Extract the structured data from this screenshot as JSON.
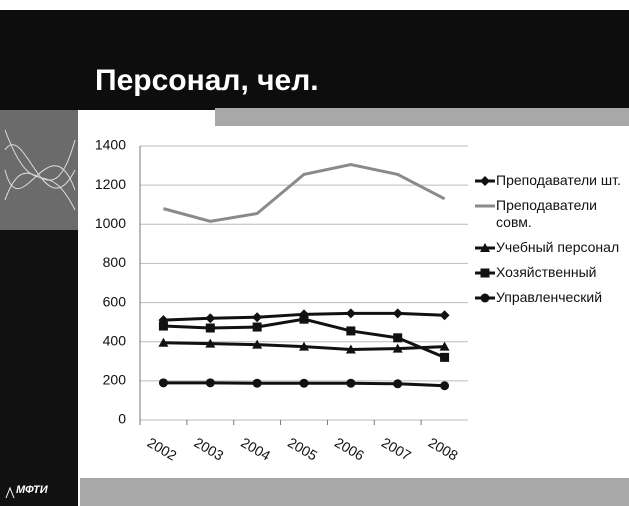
{
  "slide_title": "Персонал, чел.",
  "logo": "МФТИ",
  "chart_data": {
    "type": "line",
    "categories": [
      "2002",
      "2003",
      "2004",
      "2005",
      "2006",
      "2007",
      "2008"
    ],
    "series": [
      {
        "name": "Преподаватели шт.",
        "color": "#111111",
        "marker": "diamond",
        "values": [
          510,
          520,
          525,
          540,
          545,
          545,
          535
        ]
      },
      {
        "name": "Преподаватели совм.",
        "color": "#8a8a8a",
        "marker": "none",
        "values": [
          1080,
          1015,
          1055,
          1255,
          1305,
          1255,
          1130
        ]
      },
      {
        "name": "Учебный персонал",
        "color": "#111111",
        "marker": "triangle",
        "values": [
          395,
          390,
          385,
          375,
          360,
          365,
          375
        ]
      },
      {
        "name": "Хозяйственный",
        "color": "#111111",
        "marker": "square",
        "values": [
          480,
          470,
          475,
          515,
          455,
          420,
          320
        ]
      },
      {
        "name": "Управленческий",
        "color": "#111111",
        "marker": "circle",
        "values": [
          190,
          190,
          188,
          188,
          188,
          185,
          175
        ]
      }
    ],
    "ylim": [
      0,
      1400
    ],
    "yticks": [
      0,
      200,
      400,
      600,
      800,
      1000,
      1200,
      1400
    ],
    "grid": true
  }
}
